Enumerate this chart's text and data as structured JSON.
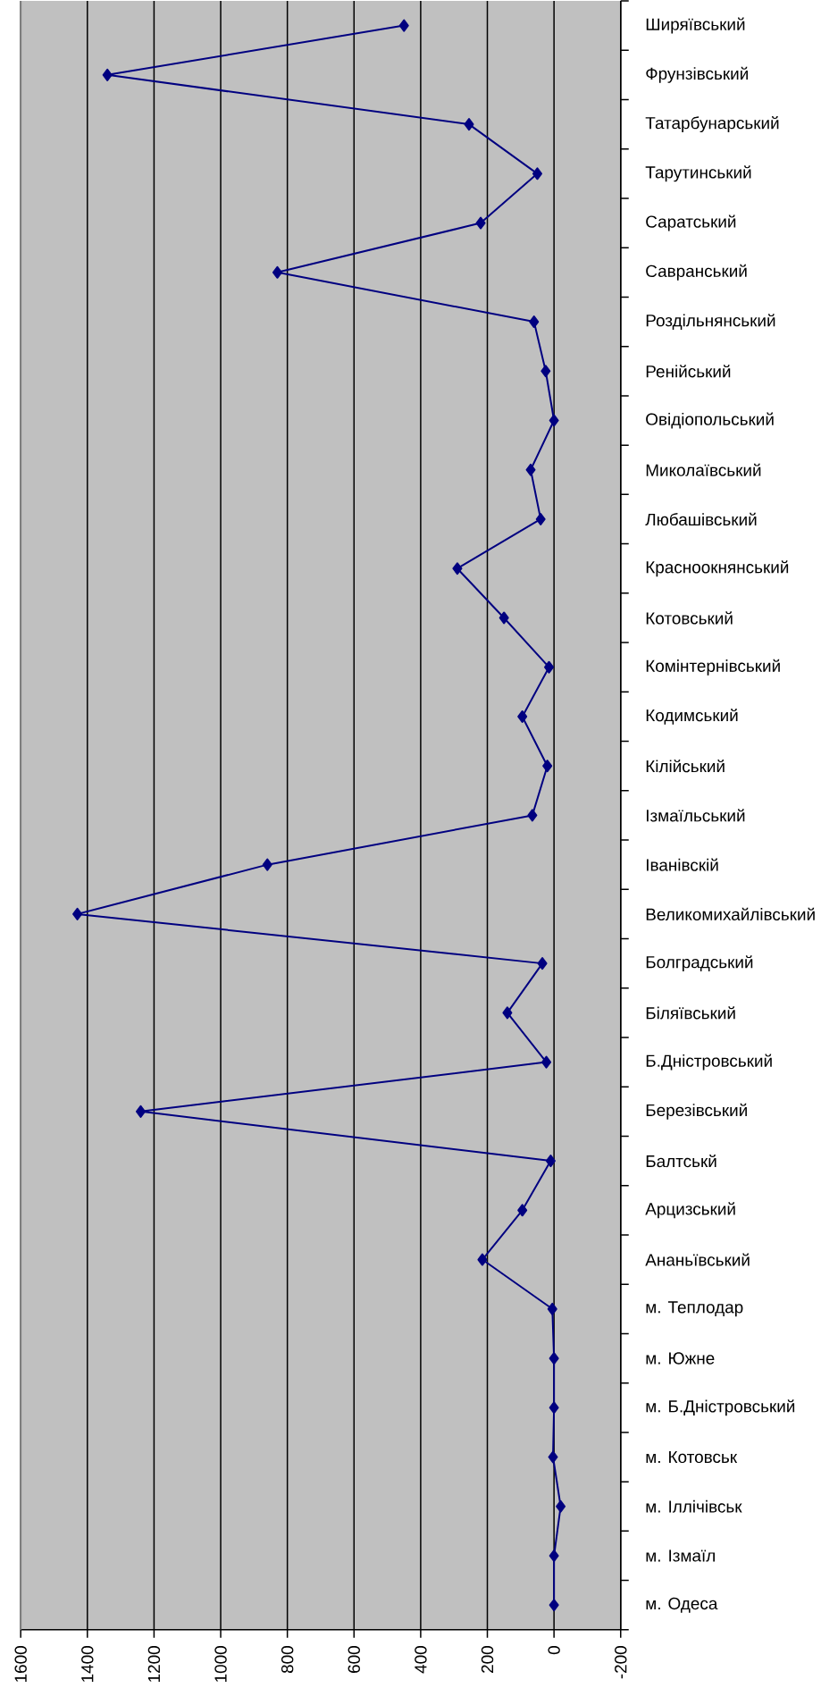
{
  "chart_data": {
    "type": "line",
    "orientation": "horizontal",
    "categories": [
      "Ширяївський",
      "Фрунзівський",
      "Татарбунарський",
      "Тарутинський",
      "Саратський",
      "Савранський",
      "Роздільнянський",
      "Ренійський",
      "Овідіопольський",
      "Миколаївський",
      "Любашівський",
      "Красноокнянський",
      "Котовський",
      "Комінтернівський",
      "Кодимський",
      "Кілійський",
      "Ізмаїльський",
      "Іванівскій",
      "Великомихайлівський",
      "Болградський",
      "Біляївський",
      "Б.Дністровський",
      "Березівський",
      "Балтськй",
      "Арцизський",
      "Ананьївський",
      "м. Теплодар",
      "м. Южне",
      "м. Б.Дністровський",
      "м. Котовськ",
      "м. Іллічівськ",
      "м. Ізмаїл",
      "м. Одеса"
    ],
    "values": [
      450,
      1340,
      255,
      50,
      220,
      830,
      60,
      25,
      0,
      70,
      40,
      290,
      150,
      15,
      95,
      20,
      65,
      860,
      1430,
      35,
      140,
      23,
      1240,
      10,
      95,
      215,
      5,
      0,
      0,
      3,
      -20,
      0,
      0
    ],
    "color": "#000080",
    "marker": "diamond",
    "line_style": "solid",
    "xlim": [
      1600,
      -200
    ],
    "xticks": [
      1600,
      1400,
      1200,
      1000,
      800,
      600,
      400,
      200,
      0,
      -200
    ],
    "grid": "x"
  }
}
